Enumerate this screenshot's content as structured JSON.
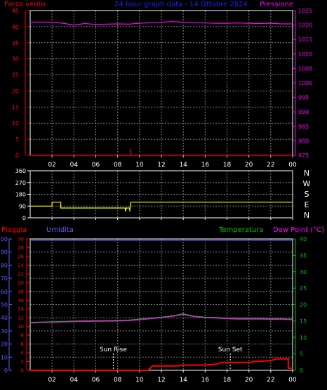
{
  "header": {
    "left_label": "Forza vento",
    "title": "24 hour graph data - 14 Ottobre 2024",
    "right_label": "Pressione"
  },
  "colors": {
    "background": "#000000",
    "frame": "#ffffff",
    "grid": "#808080",
    "wind": "#ff0000",
    "pressure": "#ff00ff",
    "direction": "#ffff00",
    "rain": "#ff0000",
    "humidity": "#6060ff",
    "temperature": "#00c000",
    "dewpoint": "#ff00ff",
    "sun": "#ffffff",
    "title": "#2020ff"
  },
  "time_ticks": [
    "02",
    "04",
    "06",
    "08",
    "10",
    "12",
    "14",
    "16",
    "18",
    "20",
    "22",
    "00"
  ],
  "chart_data": [
    {
      "type": "line",
      "name": "pressure-wind",
      "x_range": [
        0,
        24
      ],
      "left_axis": {
        "label": "Forza vento",
        "range": [
          0,
          45
        ],
        "ticks": [
          0,
          5,
          10,
          15,
          20,
          25,
          30,
          35,
          40,
          45
        ]
      },
      "right_axis": {
        "label": "Pressione",
        "range": [
          975,
          1025
        ],
        "ticks": [
          975,
          980,
          985,
          990,
          995,
          1000,
          1005,
          1010,
          1015,
          1020,
          1025
        ]
      },
      "grid": true,
      "series": [
        {
          "name": "Pressione",
          "axis": "right",
          "color": "#ff00ff",
          "points": [
            [
              0,
              1021
            ],
            [
              1,
              1021
            ],
            [
              2,
              1021
            ],
            [
              3,
              1020.6
            ],
            [
              4,
              1020
            ],
            [
              5,
              1020.5
            ],
            [
              6,
              1020.2
            ],
            [
              7,
              1020.3
            ],
            [
              8,
              1020.4
            ],
            [
              9,
              1020.3
            ],
            [
              10,
              1020.6
            ],
            [
              11,
              1020.8
            ],
            [
              12,
              1021
            ],
            [
              13,
              1021.2
            ],
            [
              14,
              1021
            ],
            [
              15,
              1020.8
            ],
            [
              16,
              1020.7
            ],
            [
              17,
              1020.6
            ],
            [
              18,
              1020.6
            ],
            [
              19,
              1020.7
            ],
            [
              20,
              1020.6
            ],
            [
              21,
              1020.5
            ],
            [
              22,
              1020.6
            ],
            [
              23,
              1020.4
            ],
            [
              24,
              1020.4
            ]
          ]
        },
        {
          "name": "Forza vento",
          "axis": "left",
          "color": "#ff0000",
          "points": [
            [
              0,
              0
            ],
            [
              9.2,
              0
            ],
            [
              9.2,
              2
            ],
            [
              9.2,
              0
            ],
            [
              24,
              0
            ]
          ]
        }
      ]
    },
    {
      "type": "line",
      "name": "wind-direction",
      "x_range": [
        0,
        24
      ],
      "left_axis": {
        "range": [
          0,
          360
        ],
        "ticks": [
          0,
          90,
          180,
          270,
          360
        ]
      },
      "right_axis": {
        "ticks_text": [
          "N",
          "W",
          "S",
          "E",
          "N"
        ]
      },
      "grid": true,
      "series": [
        {
          "name": "direction",
          "axis": "left",
          "color": "#ffff00",
          "points": [
            [
              0,
              90
            ],
            [
              2,
              90
            ],
            [
              2,
              120
            ],
            [
              2.8,
              120
            ],
            [
              2.8,
              75
            ],
            [
              8.7,
              75
            ],
            [
              8.7,
              50
            ],
            [
              8.8,
              75
            ],
            [
              9.1,
              75
            ],
            [
              9.1,
              50
            ],
            [
              9.2,
              120
            ],
            [
              24,
              120
            ]
          ]
        }
      ]
    },
    {
      "type": "line",
      "name": "rain-humidity-temperature",
      "x_range": [
        0,
        24
      ],
      "labels": {
        "rain": "Pioggia",
        "humidity": "Umidita",
        "temperature": "Temperatura",
        "dewpoint": "Dew Point (°C)"
      },
      "left_axis_humidity": {
        "range": [
          0,
          100
        ],
        "ticks": [
          0,
          10,
          20,
          30,
          40,
          50,
          60,
          70,
          80,
          90,
          100
        ]
      },
      "left_axis_rain": {
        "range": [
          0,
          30
        ],
        "ticks": [
          0,
          2,
          4,
          6,
          8,
          10,
          12,
          14,
          16,
          18,
          20,
          22,
          24,
          26,
          28,
          30
        ]
      },
      "right_axis": {
        "range": [
          0,
          40
        ],
        "ticks": [
          0,
          5,
          10,
          15,
          20,
          25,
          30,
          35,
          40
        ]
      },
      "grid": true,
      "annotations": [
        {
          "text": "Sun Rise",
          "x": 7.6
        },
        {
          "text": "Sun Set",
          "x": 18.3
        }
      ],
      "series": [
        {
          "name": "Umidita",
          "axis": "humidity",
          "color": "#6060ff",
          "points": [
            [
              0,
              99
            ],
            [
              24,
              99
            ]
          ]
        },
        {
          "name": "Temperatura",
          "axis": "right",
          "color": "#00c000",
          "points": [
            [
              0,
              14.6
            ],
            [
              2,
              14.8
            ],
            [
              4,
              15
            ],
            [
              6,
              15.1
            ],
            [
              8,
              15.2
            ],
            [
              9,
              15.3
            ],
            [
              10,
              15.6
            ],
            [
              11,
              15.9
            ],
            [
              12,
              16.2
            ],
            [
              13,
              16.6
            ],
            [
              14,
              17.2
            ],
            [
              15,
              16.5
            ],
            [
              16,
              16.2
            ],
            [
              17,
              16.1
            ],
            [
              18,
              15.9
            ],
            [
              19,
              15.8
            ],
            [
              20,
              15.8
            ],
            [
              21,
              15.8
            ],
            [
              22,
              15.7
            ],
            [
              23,
              15.7
            ],
            [
              24,
              15.6
            ]
          ]
        },
        {
          "name": "Dew Point (°C)",
          "axis": "right",
          "color": "#ff00ff",
          "points": [
            [
              0,
              14.4
            ],
            [
              2,
              14.6
            ],
            [
              4,
              14.8
            ],
            [
              6,
              14.9
            ],
            [
              8,
              15
            ],
            [
              9,
              15.1
            ],
            [
              10,
              15.4
            ],
            [
              11,
              15.7
            ],
            [
              12,
              16
            ],
            [
              13,
              16.4
            ],
            [
              14,
              17
            ],
            [
              15,
              16.3
            ],
            [
              16,
              16
            ],
            [
              17,
              15.9
            ],
            [
              18,
              15.7
            ],
            [
              19,
              15.6
            ],
            [
              20,
              15.6
            ],
            [
              21,
              15.6
            ],
            [
              22,
              15.5
            ],
            [
              23,
              15.5
            ],
            [
              24,
              15.4
            ]
          ]
        },
        {
          "name": "Pioggia",
          "axis": "rain",
          "color": "#ff0000",
          "points": [
            [
              0,
              0
            ],
            [
              10.8,
              0
            ],
            [
              11.2,
              1
            ],
            [
              13.5,
              1
            ],
            [
              14,
              1.2
            ],
            [
              16,
              1.2
            ],
            [
              17,
              1.4
            ],
            [
              17.5,
              1.8
            ],
            [
              20,
              1.8
            ],
            [
              20.5,
              2
            ],
            [
              22,
              2.2
            ],
            [
              22.5,
              2.6
            ],
            [
              23.6,
              2.6
            ],
            [
              23.6,
              0.5
            ],
            [
              24,
              0.5
            ]
          ]
        }
      ]
    }
  ]
}
